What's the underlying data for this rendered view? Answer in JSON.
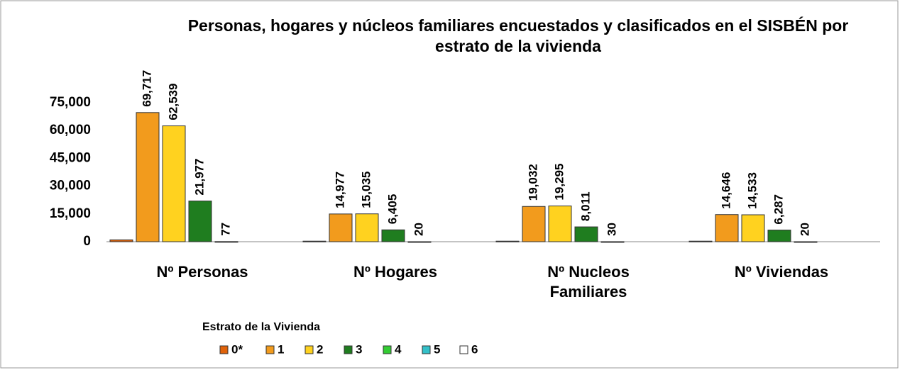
{
  "chart_data": {
    "type": "bar",
    "title": "Personas, hogares y núcleos familiares encuestados y clasificados en el SISBÉN por estrato de la vivienda",
    "categories": [
      "Nº Personas",
      "Nº Hogares",
      "Nº Nucleos Familiares",
      "Nº Viviendas"
    ],
    "legend_title": "Estrato de la Vivienda",
    "series": [
      {
        "name": "0*",
        "color": "#e0620a",
        "values": [
          1000,
          300,
          300,
          300
        ]
      },
      {
        "name": "1",
        "color": "#f29b1d",
        "values": [
          69717,
          14977,
          19032,
          14646
        ],
        "value_labels": [
          "69,717",
          "14,977",
          "19,032",
          "14,646"
        ]
      },
      {
        "name": "2",
        "color": "#ffd21f",
        "values": [
          62539,
          15035,
          19295,
          14533
        ],
        "value_labels": [
          "62,539",
          "15,035",
          "19,295",
          "14,533"
        ]
      },
      {
        "name": "3",
        "color": "#1f7d1f",
        "values": [
          21977,
          6405,
          8011,
          6287
        ],
        "value_labels": [
          "21,977",
          "6,405",
          "8,011",
          "6,287"
        ]
      },
      {
        "name": "4",
        "color": "#33cc33",
        "values": [
          77,
          20,
          30,
          20
        ]
      },
      {
        "name": "5",
        "color": "#33c0c8",
        "values": [
          null,
          null,
          null,
          null
        ]
      },
      {
        "name": "6",
        "color": "#ffffff",
        "values": [
          null,
          null,
          null,
          null
        ]
      }
    ],
    "ylim": [
      0,
      75000
    ],
    "yticks": [
      0,
      {
        "value": 15000,
        "label": "15,000"
      },
      {
        "value": 30000,
        "label": "30,000"
      },
      {
        "value": 45000,
        "label": "45,000"
      },
      {
        "value": 60000,
        "label": "60,000"
      },
      {
        "value": 75000,
        "label": "75,000"
      }
    ]
  }
}
